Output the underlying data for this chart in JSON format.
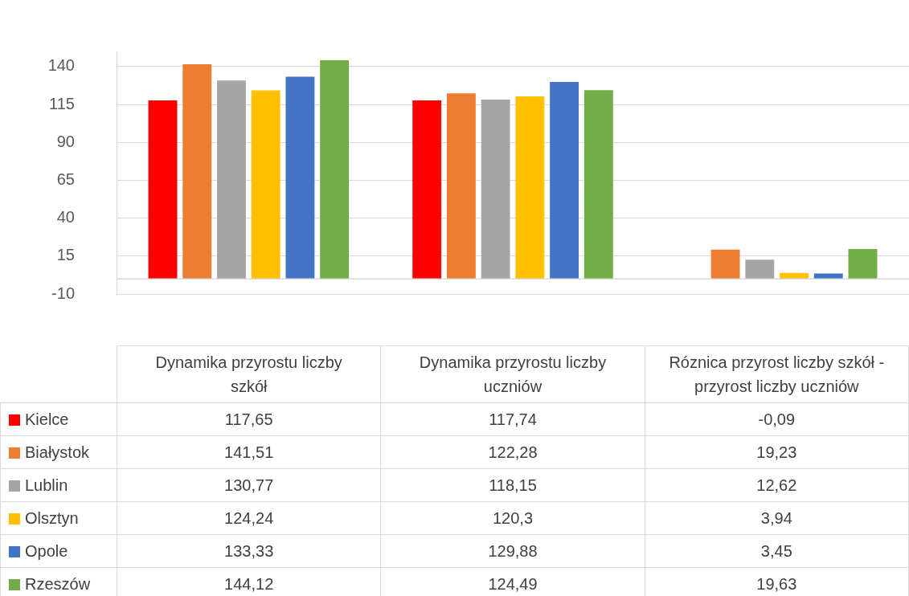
{
  "chart_data": {
    "type": "bar",
    "categories": [
      "Dynamika przyrostu liczby szkół",
      "Dynamika przyrostu liczby uczniów",
      "Róznica przyrost liczby szkół - przyrost liczby uczniów"
    ],
    "series": [
      {
        "name": "Kielce",
        "color": "#ff0000",
        "values": [
          117.65,
          117.74,
          -0.09
        ],
        "value_labels": [
          "117,65",
          "117,74",
          "-0,09"
        ]
      },
      {
        "name": "Białystok",
        "color": "#ed7d31",
        "values": [
          141.51,
          122.28,
          19.23
        ],
        "value_labels": [
          "141,51",
          "122,28",
          "19,23"
        ]
      },
      {
        "name": "Lublin",
        "color": "#a5a5a5",
        "values": [
          130.77,
          118.15,
          12.62
        ],
        "value_labels": [
          "130,77",
          "118,15",
          "12,62"
        ]
      },
      {
        "name": "Olsztyn",
        "color": "#ffc000",
        "values": [
          124.24,
          120.3,
          3.94
        ],
        "value_labels": [
          "124,24",
          "120,3",
          "3,94"
        ]
      },
      {
        "name": "Opole",
        "color": "#4472c4",
        "values": [
          133.33,
          129.88,
          3.45
        ],
        "value_labels": [
          "133,33",
          "129,88",
          "3,45"
        ]
      },
      {
        "name": "Rzeszów",
        "color": "#70ad47",
        "values": [
          144.12,
          124.49,
          19.63
        ],
        "value_labels": [
          "144,12",
          "124,49",
          "19,63"
        ]
      }
    ],
    "ylim": [
      -10,
      150
    ],
    "yticks": [
      -10,
      15,
      40,
      65,
      90,
      115,
      140
    ],
    "grid": "y",
    "legend": "bottom"
  }
}
